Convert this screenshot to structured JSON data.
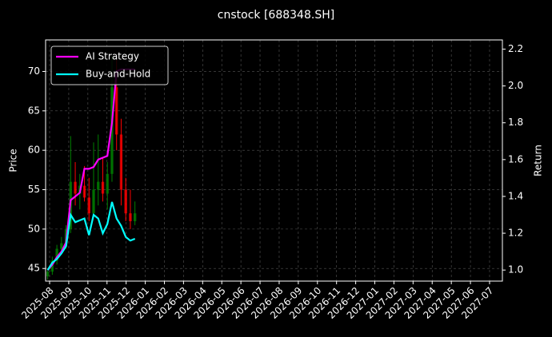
{
  "chart_data": {
    "type": "candlestick",
    "title": "cnstock [688348.SH]",
    "ylabel": "Price",
    "y2label": "Return",
    "x": [
      -0.1,
      0.14,
      0.38,
      0.62,
      0.86,
      1.1,
      1.34,
      1.58,
      1.82,
      2.06,
      2.3,
      2.54,
      2.78,
      3.02,
      3.26,
      3.5,
      3.74,
      3.98,
      4.22,
      4.46
    ],
    "open": [
      44.0,
      44.6,
      46.0,
      47.5,
      48.2,
      50.0,
      56.0,
      54.5,
      55.5,
      54.0,
      52.0,
      55.0,
      56.0,
      54.5,
      57.0,
      68.0,
      62.0,
      55.0,
      52.0,
      51.0
    ],
    "high": [
      45.0,
      46.5,
      48.0,
      49.0,
      50.5,
      61.8,
      58.5,
      57.0,
      58.0,
      56.5,
      61.0,
      62.0,
      59.0,
      58.5,
      72.0,
      71.5,
      64.0,
      56.5,
      55.0,
      53.5
    ],
    "low": [
      43.6,
      44.2,
      45.5,
      46.8,
      47.5,
      49.5,
      53.0,
      52.5,
      53.5,
      51.0,
      51.5,
      53.0,
      53.5,
      52.5,
      56.0,
      60.0,
      53.0,
      51.0,
      50.0,
      50.5
    ],
    "close": [
      44.6,
      46.0,
      47.5,
      48.2,
      50.0,
      56.0,
      54.5,
      55.5,
      54.0,
      52.0,
      55.0,
      56.0,
      54.5,
      57.0,
      68.0,
      62.0,
      55.0,
      52.0,
      51.0,
      52.0
    ],
    "up_color": "#008000",
    "down_color": "#ff0000",
    "series": [
      {
        "name": "AI Strategy",
        "color": "#ff00ff",
        "axis": "y2",
        "values": [
          1.0,
          1.03,
          1.07,
          1.1,
          1.15,
          1.38,
          1.4,
          1.42,
          1.55,
          1.55,
          1.56,
          1.6,
          1.61,
          1.62,
          1.8,
          2.08,
          2.09,
          2.09,
          2.09,
          2.09
        ]
      },
      {
        "name": "Buy-and-Hold",
        "color": "#00ffff",
        "axis": "y2",
        "values": [
          1.0,
          1.04,
          1.06,
          1.09,
          1.13,
          1.3,
          1.26,
          1.27,
          1.28,
          1.19,
          1.3,
          1.28,
          1.2,
          1.25,
          1.37,
          1.28,
          1.24,
          1.18,
          1.16,
          1.17
        ]
      }
    ],
    "xlim": [
      -0.21,
      23.67
    ],
    "xticks": [
      {
        "value": 0,
        "label": "2025-08"
      },
      {
        "value": 1,
        "label": "2025-09"
      },
      {
        "value": 2,
        "label": "2025-10"
      },
      {
        "value": 3,
        "label": "2025-11"
      },
      {
        "value": 4,
        "label": "2025-12"
      },
      {
        "value": 5,
        "label": "2026-01"
      },
      {
        "value": 6,
        "label": "2026-02"
      },
      {
        "value": 7,
        "label": "2026-03"
      },
      {
        "value": 8,
        "label": "2026-04"
      },
      {
        "value": 9,
        "label": "2026-05"
      },
      {
        "value": 10,
        "label": "2026-06"
      },
      {
        "value": 11,
        "label": "2026-07"
      },
      {
        "value": 12,
        "label": "2026-08"
      },
      {
        "value": 13,
        "label": "2026-09"
      },
      {
        "value": 14,
        "label": "2026-10"
      },
      {
        "value": 15,
        "label": "2026-11"
      },
      {
        "value": 16,
        "label": "2026-12"
      },
      {
        "value": 17,
        "label": "2027-01"
      },
      {
        "value": 18,
        "label": "2027-02"
      },
      {
        "value": 19,
        "label": "2027-03"
      },
      {
        "value": 20,
        "label": "2027-04"
      },
      {
        "value": 21,
        "label": "2027-05"
      },
      {
        "value": 22,
        "label": "2027-06"
      },
      {
        "value": 23,
        "label": "2027-07"
      }
    ],
    "ylim": [
      43.4,
      74.0
    ],
    "yticks": [
      45,
      50,
      55,
      60,
      65,
      70
    ],
    "y2lim": [
      0.94,
      2.25
    ],
    "y2ticks": [
      {
        "value": 1.0,
        "label": "1.0"
      },
      1.2,
      1.4,
      1.6,
      1.8,
      {
        "value": 2.0,
        "label": "2.0"
      },
      2.2
    ],
    "grid": true,
    "legend": "upper left"
  }
}
